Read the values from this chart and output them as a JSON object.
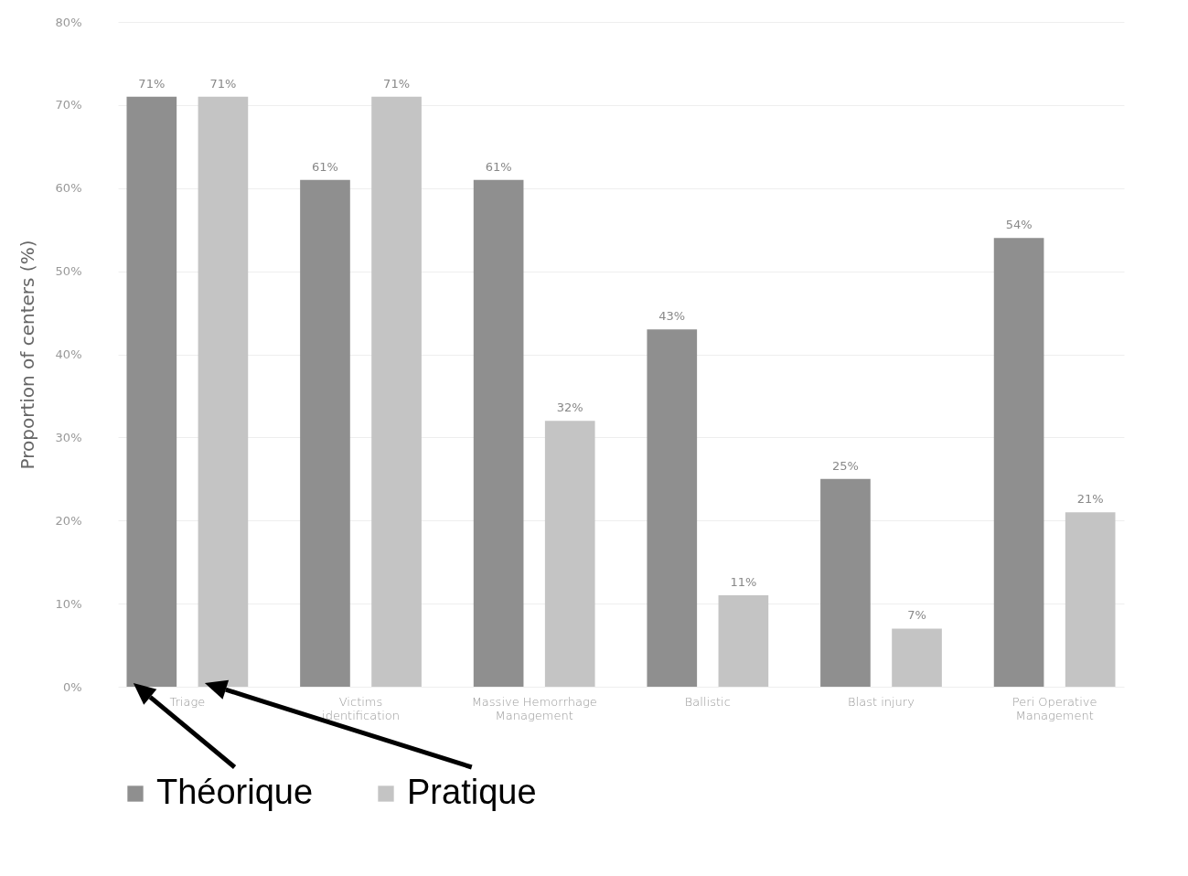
{
  "chart_data": {
    "type": "bar",
    "ylabel": "Proportion of centers (%)",
    "categories": [
      "Triage",
      "Victims identification",
      "Massive Hemorrhage Management",
      "Ballistic",
      "Blast injury",
      "Peri Operative Management"
    ],
    "series": [
      {
        "name": "Théorique",
        "color": "#8f8f8f",
        "values": [
          71,
          61,
          61,
          43,
          25,
          54
        ],
        "value_labels": [
          "71%",
          "61%",
          "61%",
          "43%",
          "25%",
          "54%"
        ]
      },
      {
        "name": "Pratique",
        "color": "#c4c4c4",
        "values": [
          71,
          71,
          32,
          11,
          7,
          21
        ],
        "value_labels": [
          "71%",
          "71%",
          "32%",
          "11%",
          "7%",
          "21%"
        ]
      }
    ],
    "ylim": [
      0,
      80
    ],
    "yticks": [
      {
        "value": 0,
        "label": "0%"
      },
      {
        "value": 10,
        "label": "10%"
      },
      {
        "value": 20,
        "label": "20%"
      },
      {
        "value": 30,
        "label": "30%"
      },
      {
        "value": 40,
        "label": "40%"
      },
      {
        "value": 50,
        "label": "50%"
      },
      {
        "value": 60,
        "label": "60%"
      },
      {
        "value": 70,
        "label": "70%"
      },
      {
        "value": 80,
        "label": "80%"
      }
    ],
    "grid": "y",
    "legend": "bottom left"
  }
}
